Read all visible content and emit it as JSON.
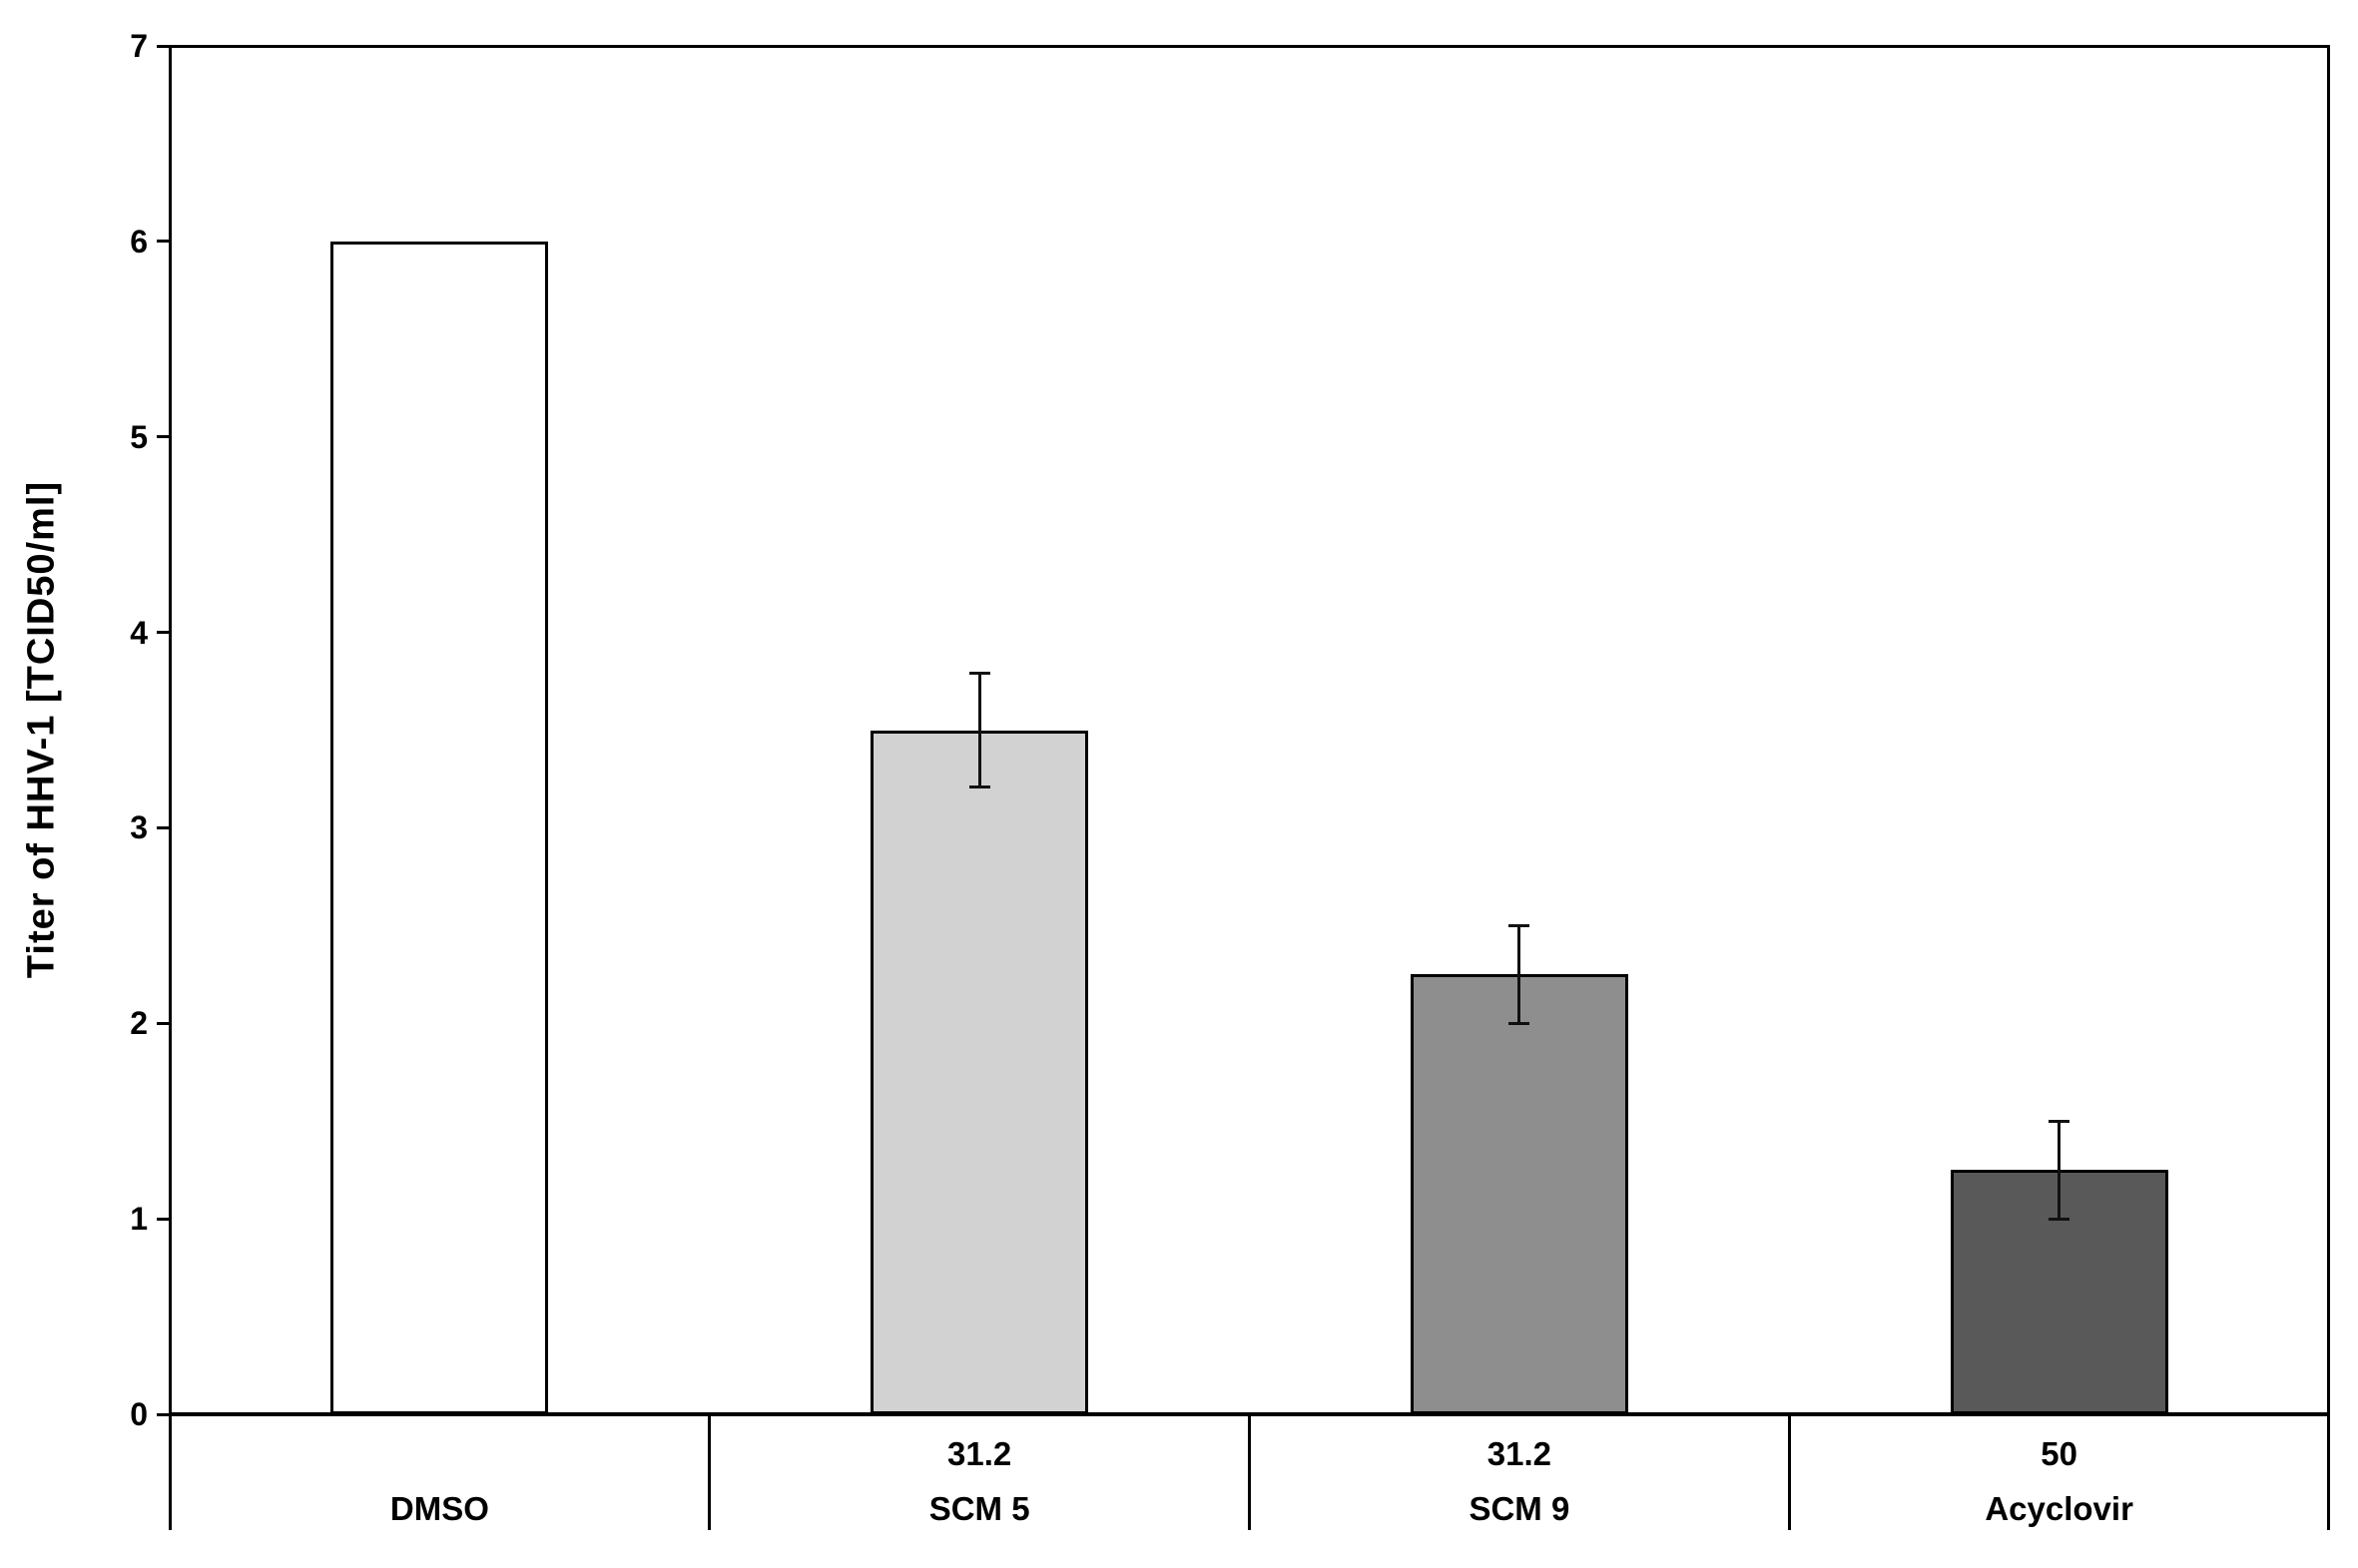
{
  "chart_data": {
    "type": "bar",
    "title": "",
    "ylabel": "Titer of HHV-1 [TCID50/ml]",
    "xlabel": "",
    "ylim": [
      0,
      7
    ],
    "yticks": [
      0,
      1,
      2,
      3,
      4,
      5,
      6,
      7
    ],
    "grid": false,
    "legend": "none",
    "categories": [
      "DMSO",
      "SCM 5",
      "SCM 9",
      "Acyclovir"
    ],
    "concentrations": [
      "",
      "31.2",
      "31.2",
      "50"
    ],
    "values": [
      6.0,
      3.5,
      2.25,
      1.25
    ],
    "errors": [
      0,
      0.29,
      0.25,
      0.25
    ],
    "bar_fill_colors": [
      "#ffffff",
      "#d2d2d2",
      "#8e8e8e",
      "#595959"
    ],
    "bar_border_color": "#000000",
    "axis_color": "#000000",
    "error_bar_color": "#111111"
  }
}
